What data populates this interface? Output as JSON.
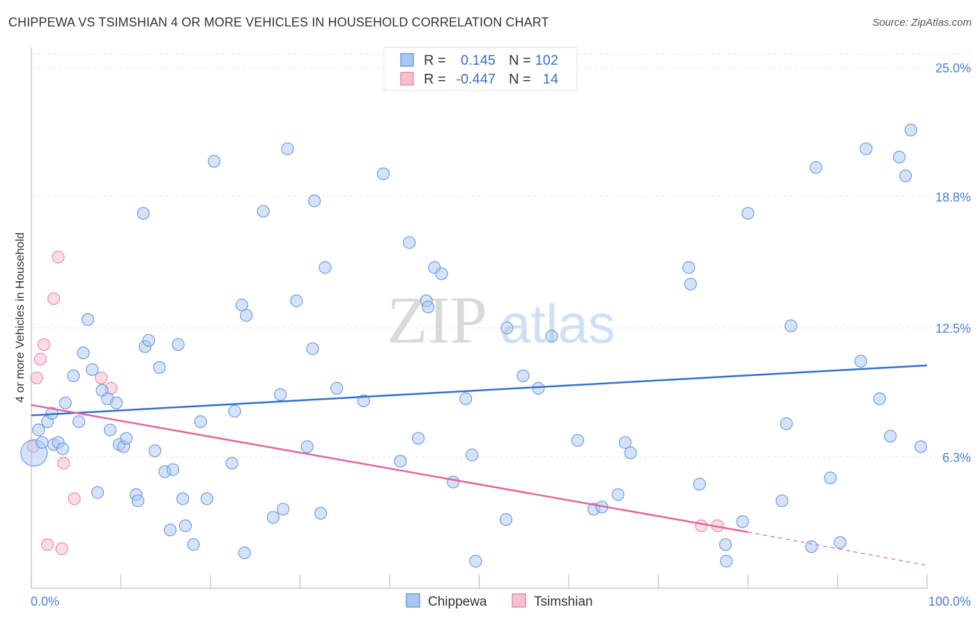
{
  "title": "CHIPPEWA VS TSIMSHIAN 4 OR MORE VEHICLES IN HOUSEHOLD CORRELATION CHART",
  "source": "Source: ZipAtlas.com",
  "watermark": {
    "zip": "ZIP",
    "atlas": "atlas"
  },
  "legend": {
    "rows": [
      {
        "r_label": "R =",
        "r_value": "0.145",
        "n_label": "N =",
        "n_value": "102",
        "color": "#a9c7f0",
        "stroke": "#6f9be0"
      },
      {
        "r_label": "R =",
        "r_value": "-0.447",
        "n_label": "N =",
        "n_value": "14",
        "color": "#f7bfd0",
        "stroke": "#e88aa8"
      }
    ]
  },
  "chart_data": {
    "type": "scatter",
    "title": "CHIPPEWA VS TSIMSHIAN 4 OR MORE VEHICLES IN HOUSEHOLD CORRELATION CHART",
    "xlabel": "",
    "ylabel": "4 or more Vehicles in Household",
    "xlim": [
      0,
      100
    ],
    "ylim": [
      0,
      25
    ],
    "x_tick_labels": [
      "0.0%",
      "100.0%"
    ],
    "y_ticks": [
      6.3,
      12.5,
      18.8,
      25.0
    ],
    "y_tick_labels": [
      "6.3%",
      "12.5%",
      "18.8%",
      "25.0%"
    ],
    "grid": true,
    "colors": {
      "Chippewa": "#a9c7f0",
      "Tsimshian": "#f7bfd0",
      "chippewa_line": "#2f6fcc",
      "tsimshian_line": "#e0649a"
    },
    "series": [
      {
        "name": "Chippewa",
        "trend": {
          "x": [
            0,
            100
          ],
          "y": [
            8.3,
            10.7
          ]
        },
        "points": [
          [
            0.3,
            6.5
          ],
          [
            0.8,
            7.6
          ],
          [
            1.2,
            7.0
          ],
          [
            1.8,
            8.0
          ],
          [
            2.3,
            8.4
          ],
          [
            2.5,
            6.9
          ],
          [
            3.0,
            7.0
          ],
          [
            3.5,
            6.7
          ],
          [
            3.8,
            8.9
          ],
          [
            4.7,
            10.2
          ],
          [
            5.3,
            8.0
          ],
          [
            5.8,
            11.3
          ],
          [
            6.3,
            12.9
          ],
          [
            6.8,
            10.5
          ],
          [
            7.4,
            4.6
          ],
          [
            7.9,
            9.5
          ],
          [
            8.5,
            9.1
          ],
          [
            8.8,
            7.6
          ],
          [
            9.5,
            8.9
          ],
          [
            9.8,
            6.9
          ],
          [
            10.3,
            6.8
          ],
          [
            10.6,
            7.2
          ],
          [
            11.7,
            4.5
          ],
          [
            11.9,
            4.2
          ],
          [
            12.5,
            18.0
          ],
          [
            12.7,
            11.6
          ],
          [
            13.1,
            11.9
          ],
          [
            13.8,
            6.6
          ],
          [
            14.3,
            10.6
          ],
          [
            14.9,
            5.6
          ],
          [
            15.5,
            2.8
          ],
          [
            15.8,
            5.7
          ],
          [
            16.4,
            11.7
          ],
          [
            16.9,
            4.3
          ],
          [
            17.2,
            3.0
          ],
          [
            18.1,
            2.1
          ],
          [
            18.9,
            8.0
          ],
          [
            19.6,
            4.3
          ],
          [
            20.4,
            20.5
          ],
          [
            22.4,
            6.0
          ],
          [
            22.7,
            8.5
          ],
          [
            23.5,
            13.6
          ],
          [
            23.8,
            1.7
          ],
          [
            24.0,
            13.1
          ],
          [
            25.9,
            18.1
          ],
          [
            27.0,
            3.4
          ],
          [
            27.8,
            9.3
          ],
          [
            28.1,
            3.8
          ],
          [
            28.6,
            21.1
          ],
          [
            29.6,
            13.8
          ],
          [
            30.8,
            6.8
          ],
          [
            31.4,
            11.5
          ],
          [
            31.6,
            18.6
          ],
          [
            32.3,
            3.6
          ],
          [
            32.8,
            15.4
          ],
          [
            34.1,
            9.6
          ],
          [
            37.1,
            9.0
          ],
          [
            39.3,
            19.9
          ],
          [
            41.2,
            6.1
          ],
          [
            42.2,
            16.6
          ],
          [
            43.2,
            7.2
          ],
          [
            44.1,
            13.8
          ],
          [
            44.3,
            13.5
          ],
          [
            45.0,
            15.4
          ],
          [
            45.8,
            15.1
          ],
          [
            47.1,
            5.1
          ],
          [
            48.5,
            9.1
          ],
          [
            49.2,
            6.4
          ],
          [
            49.6,
            1.3
          ],
          [
            53.0,
            3.3
          ],
          [
            53.1,
            12.5
          ],
          [
            54.9,
            10.2
          ],
          [
            56.6,
            9.6
          ],
          [
            58.1,
            12.1
          ],
          [
            61.0,
            7.1
          ],
          [
            62.8,
            3.8
          ],
          [
            63.7,
            3.9
          ],
          [
            65.5,
            4.5
          ],
          [
            66.3,
            7.0
          ],
          [
            66.9,
            6.5
          ],
          [
            73.4,
            15.4
          ],
          [
            73.6,
            14.6
          ],
          [
            74.6,
            5.0
          ],
          [
            77.5,
            2.1
          ],
          [
            77.6,
            1.3
          ],
          [
            79.4,
            3.2
          ],
          [
            80.0,
            18.0
          ],
          [
            83.8,
            4.2
          ],
          [
            84.3,
            7.9
          ],
          [
            84.8,
            12.6
          ],
          [
            87.1,
            2.0
          ],
          [
            87.6,
            20.2
          ],
          [
            89.2,
            5.3
          ],
          [
            90.3,
            2.2
          ],
          [
            92.6,
            10.9
          ],
          [
            93.2,
            21.1
          ],
          [
            94.7,
            9.1
          ],
          [
            95.9,
            7.3
          ],
          [
            96.9,
            20.7
          ],
          [
            97.6,
            19.8
          ],
          [
            98.2,
            22.0
          ],
          [
            99.3,
            6.8
          ]
        ]
      },
      {
        "name": "Tsimshian",
        "trend": {
          "x": [
            0,
            80
          ],
          "y": [
            8.8,
            2.7
          ]
        },
        "trend_dashed": {
          "x": [
            80,
            100
          ],
          "y": [
            2.7,
            1.1
          ]
        },
        "points": [
          [
            0.2,
            6.8
          ],
          [
            0.6,
            10.1
          ],
          [
            1.0,
            11.0
          ],
          [
            1.4,
            11.7
          ],
          [
            1.8,
            2.1
          ],
          [
            2.5,
            13.9
          ],
          [
            3.0,
            15.9
          ],
          [
            3.4,
            1.9
          ],
          [
            3.6,
            6.0
          ],
          [
            4.8,
            4.3
          ],
          [
            7.8,
            10.1
          ],
          [
            8.9,
            9.6
          ],
          [
            74.8,
            3.0
          ],
          [
            76.6,
            3.0
          ]
        ]
      }
    ],
    "legend_entries": [
      "Chippewa",
      "Tsimshian"
    ]
  }
}
